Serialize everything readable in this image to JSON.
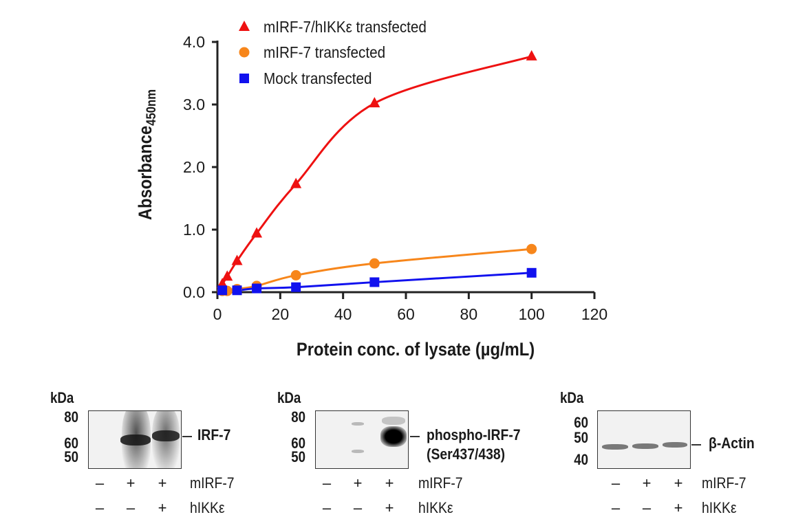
{
  "chart_data": {
    "type": "line",
    "title": "",
    "xlabel": "Protein conc. of lysate (µg/mL)",
    "ylabel": "Absorbance",
    "ylabel_subscript": "450nm",
    "xlim": [
      0,
      120
    ],
    "ylim": [
      0,
      4
    ],
    "xticks": [
      "0",
      "20",
      "40",
      "60",
      "80",
      "100",
      "120"
    ],
    "yticks": [
      "0.0",
      "1.0",
      "2.0",
      "3.0",
      "4.0"
    ],
    "grid": false,
    "legend_position": "top-left",
    "series": [
      {
        "name": "mIRF-7/hIKKε transfected",
        "color": "#ee1111",
        "marker": "triangle",
        "x": [
          1.56,
          3.125,
          6.25,
          12.5,
          25,
          50,
          100
        ],
        "y": [
          0.13,
          0.25,
          0.5,
          0.94,
          1.73,
          3.02,
          3.77
        ]
      },
      {
        "name": "mIRF-7 transfected",
        "color": "#f7861b",
        "marker": "circle",
        "x": [
          1.56,
          3.125,
          6.25,
          12.5,
          25,
          50,
          100
        ],
        "y": [
          0.02,
          0.02,
          0.05,
          0.1,
          0.27,
          0.46,
          0.69
        ]
      },
      {
        "name": "Mock transfected",
        "color": "#1111ee",
        "marker": "square",
        "x": [
          1.56,
          6.25,
          12.5,
          25,
          50,
          100
        ],
        "y": [
          0.03,
          0.03,
          0.06,
          0.08,
          0.16,
          0.31
        ]
      }
    ]
  },
  "blots": [
    {
      "unit": "kDa",
      "markers": [
        "80",
        "60",
        "50"
      ],
      "target": "IRF-7",
      "target2": "",
      "row1_label": "mIRF-7",
      "row1": [
        "–",
        "+",
        "+"
      ],
      "row2_label": "hIKKε",
      "row2": [
        "–",
        "–",
        "+"
      ]
    },
    {
      "unit": "kDa",
      "markers": [
        "80",
        "60",
        "50"
      ],
      "target": "phospho-IRF-7",
      "target2": "(Ser437/438)",
      "row1_label": "mIRF-7",
      "row1": [
        "–",
        "+",
        "+"
      ],
      "row2_label": "hIKKε",
      "row2": [
        "–",
        "–",
        "+"
      ]
    },
    {
      "unit": "kDa",
      "markers": [
        "60",
        "50",
        "40"
      ],
      "target": "β-Actin",
      "target2": "",
      "row1_label": "mIRF-7",
      "row1": [
        "–",
        "+",
        "+"
      ],
      "row2_label": "hIKKε",
      "row2": [
        "–",
        "–",
        "+"
      ]
    }
  ]
}
